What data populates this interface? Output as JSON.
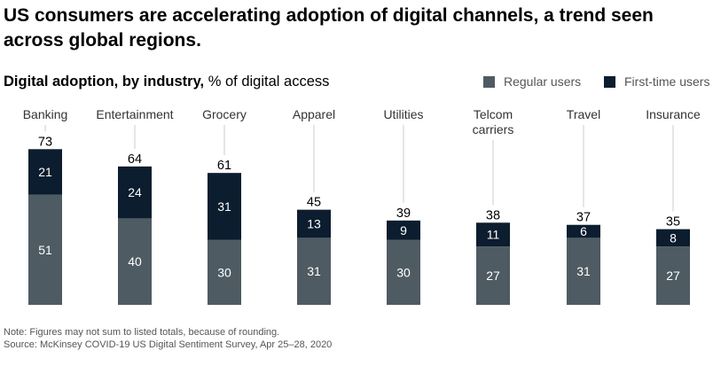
{
  "header": {
    "title": "US consumers are accelerating adoption of digital channels, a trend seen across global regions.",
    "subtitle_bold": "Digital adoption, by industry,",
    "subtitle_rest": "% of digital access"
  },
  "legend": [
    {
      "label": "Regular users",
      "color": "#4f5b62"
    },
    {
      "label": "First-time users",
      "color": "#0b1d2e"
    }
  ],
  "chart_data": {
    "type": "bar",
    "stacked": true,
    "categories": [
      "Banking",
      "Entertainment",
      "Grocery",
      "Apparel",
      "Utilities",
      "Telcom carriers",
      "Travel",
      "Insurance"
    ],
    "category_lines": [
      [
        "Banking"
      ],
      [
        "Entertainment"
      ],
      [
        "Grocery"
      ],
      [
        "Apparel"
      ],
      [
        "Utilities"
      ],
      [
        "Telcom",
        "carriers"
      ],
      [
        "Travel"
      ],
      [
        "Insurance"
      ]
    ],
    "series": [
      {
        "name": "Regular users",
        "values": [
          51,
          40,
          30,
          31,
          30,
          27,
          31,
          27
        ],
        "color": "#4f5b62"
      },
      {
        "name": "First-time users",
        "values": [
          21,
          24,
          31,
          13,
          9,
          11,
          6,
          8
        ],
        "color": "#0b1d2e"
      }
    ],
    "totals": [
      73,
      64,
      61,
      45,
      39,
      38,
      37,
      35
    ],
    "ylim": [
      0,
      75
    ],
    "legend_position": "top-right"
  },
  "footer": {
    "note": "Note: Figures may not sum to listed totals, because of rounding.",
    "source": "Source: McKinsey COVID-19 US Digital Sentiment Survey, Apr 25–28, 2020"
  }
}
